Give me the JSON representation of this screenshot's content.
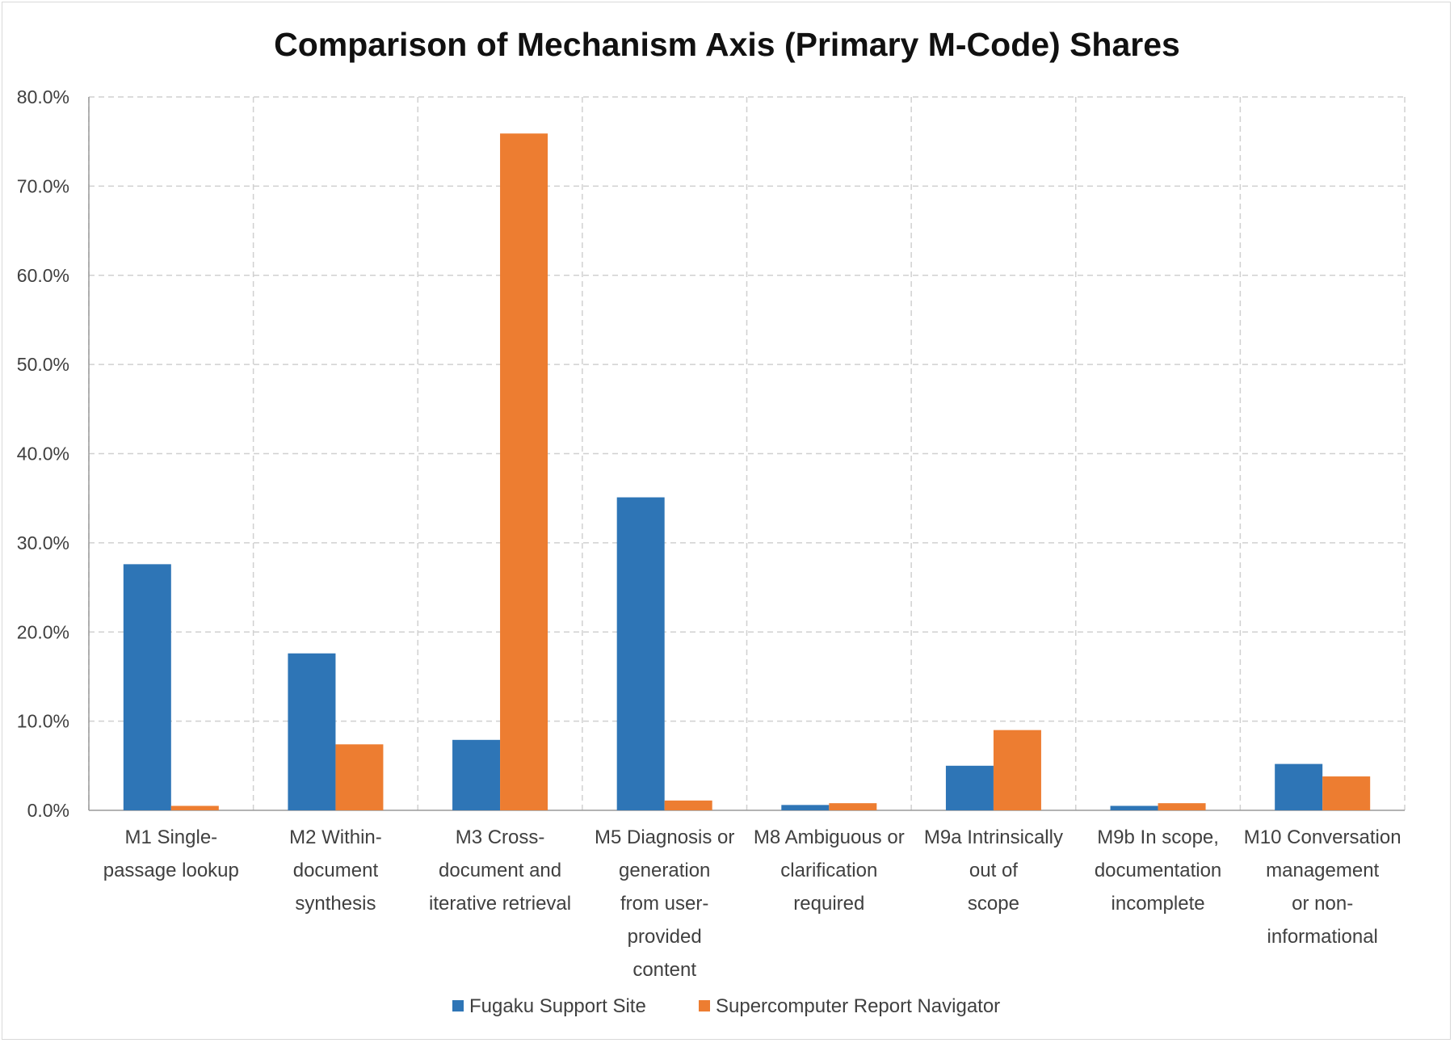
{
  "chart_data": {
    "type": "bar",
    "title": "Comparison of Mechanism Axis (Primary M-Code) Shares",
    "xlabel": "",
    "ylabel": "",
    "ylim": [
      0,
      80
    ],
    "yticks": [
      "0.0%",
      "10.0%",
      "20.0%",
      "30.0%",
      "40.0%",
      "50.0%",
      "60.0%",
      "70.0%",
      "80.0%"
    ],
    "grid": true,
    "legend_position": "bottom",
    "categories": [
      [
        "M1 Single-",
        "passage lookup"
      ],
      [
        "M2 Within-",
        "document",
        "synthesis"
      ],
      [
        "M3 Cross-",
        "document and",
        "iterative retrieval"
      ],
      [
        "M5 Diagnosis or",
        "generation",
        "from user-",
        "provided",
        "content"
      ],
      [
        "M8 Ambiguous or",
        "clarification",
        "required"
      ],
      [
        "M9a Intrinsically",
        "out of",
        "scope"
      ],
      [
        "M9b In scope,",
        "documentation",
        "incomplete"
      ],
      [
        "M10 Conversation",
        "management",
        "or non-",
        "informational"
      ]
    ],
    "series": [
      {
        "name": "Fugaku Support Site",
        "color": "#2e75b6",
        "values": [
          27.6,
          17.6,
          7.9,
          35.1,
          0.6,
          5.0,
          0.5,
          5.2
        ]
      },
      {
        "name": "Supercomputer Report Navigator",
        "color": "#ed7d31",
        "values": [
          0.5,
          7.4,
          75.9,
          1.1,
          0.8,
          9.0,
          0.8,
          3.8
        ]
      }
    ]
  }
}
